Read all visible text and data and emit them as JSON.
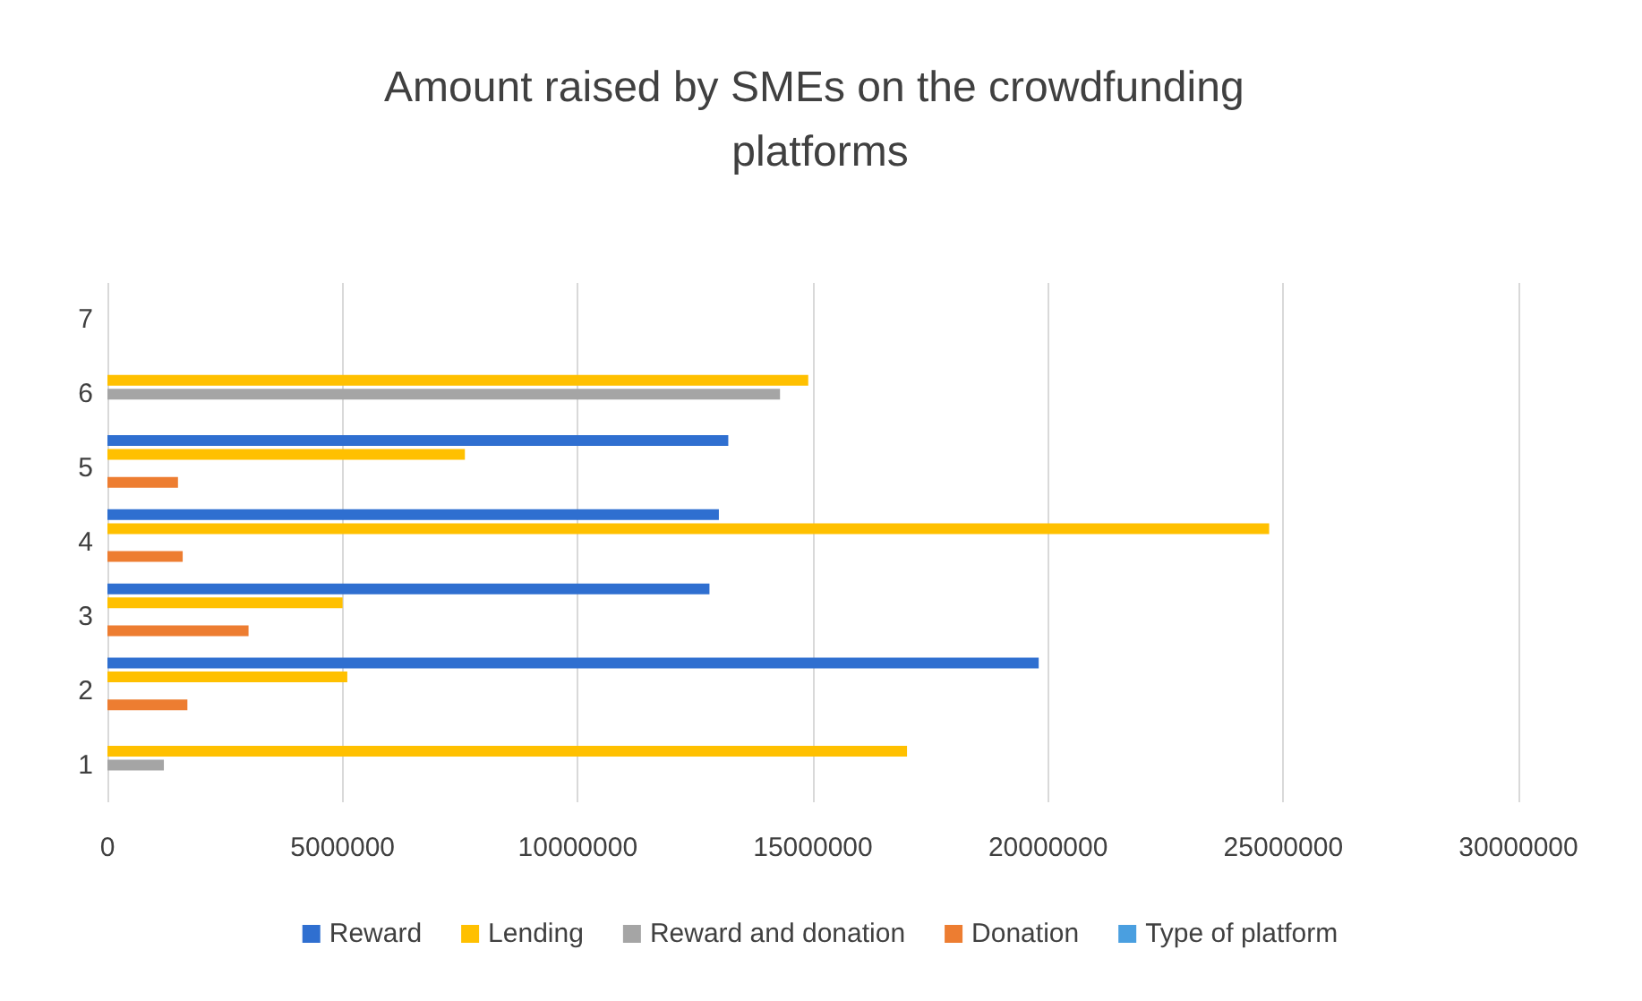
{
  "chart_data": {
    "type": "bar",
    "orientation": "horizontal",
    "title": "Amount raised by SMEs on the crowdfunding platforms",
    "categories": [
      "7",
      "6",
      "5",
      "4",
      "3",
      "2",
      "1"
    ],
    "series": [
      {
        "name": "Reward",
        "color": "#2f6fd0",
        "values": [
          null,
          null,
          13200000,
          13000000,
          12800000,
          19800000,
          null
        ]
      },
      {
        "name": "Lending",
        "color": "#ffc000",
        "values": [
          null,
          14900000,
          7600000,
          24700000,
          5000000,
          5100000,
          17000000
        ]
      },
      {
        "name": "Reward and donation",
        "color": "#a5a5a5",
        "values": [
          null,
          14300000,
          null,
          null,
          null,
          null,
          1200000
        ]
      },
      {
        "name": "Donation",
        "color": "#ed7d31",
        "values": [
          null,
          null,
          1500000,
          1600000,
          3000000,
          1700000,
          null
        ]
      },
      {
        "name": "Type of platform",
        "color": "#4a9fe0",
        "values": [
          null,
          null,
          null,
          null,
          null,
          null,
          null
        ]
      }
    ],
    "xlim": [
      0,
      30000000
    ],
    "xticks": [
      0,
      5000000,
      10000000,
      15000000,
      20000000,
      25000000,
      30000000
    ],
    "grid": "x",
    "legend": "bottom"
  }
}
